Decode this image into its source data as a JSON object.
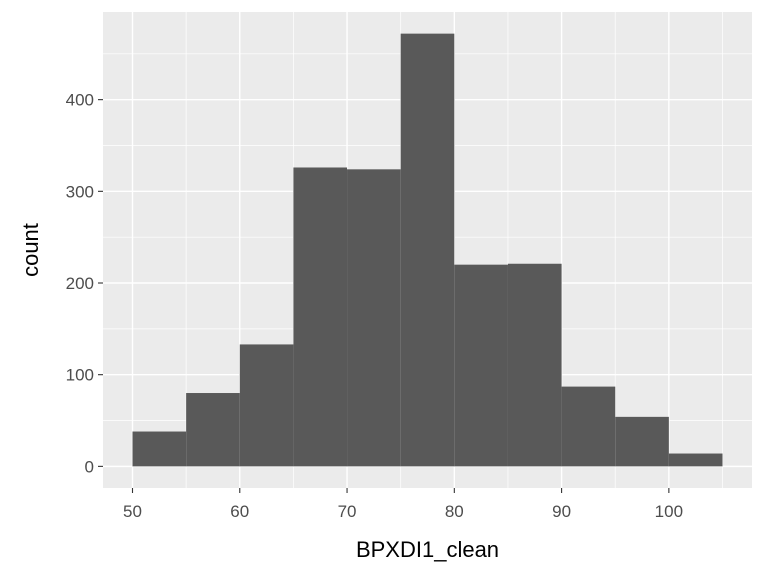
{
  "chart_data": {
    "type": "bar",
    "subtype": "histogram",
    "title": "",
    "xlabel": "BPXDI1_clean",
    "ylabel": "count",
    "bins": [
      {
        "x0": 50,
        "x1": 55,
        "count": 38
      },
      {
        "x0": 55,
        "x1": 60,
        "count": 80
      },
      {
        "x0": 60,
        "x1": 65,
        "count": 133
      },
      {
        "x0": 65,
        "x1": 70,
        "count": 326
      },
      {
        "x0": 70,
        "x1": 75,
        "count": 324
      },
      {
        "x0": 75,
        "x1": 80,
        "count": 472
      },
      {
        "x0": 80,
        "x1": 85,
        "count": 220
      },
      {
        "x0": 85,
        "x1": 90,
        "count": 221
      },
      {
        "x0": 90,
        "x1": 95,
        "count": 87
      },
      {
        "x0": 95,
        "x1": 100,
        "count": 54
      },
      {
        "x0": 100,
        "x1": 105,
        "count": 14
      }
    ],
    "xlim": [
      47.25,
      107.75
    ],
    "ylim": [
      -23.6,
      495.6
    ],
    "xticks": [
      50,
      60,
      70,
      80,
      90,
      100
    ],
    "xtick_labels": [
      "50",
      "60",
      "70",
      "80",
      "90",
      "100"
    ],
    "yticks": [
      0,
      100,
      200,
      300,
      400
    ],
    "ytick_labels": [
      "0",
      "100",
      "200",
      "300",
      "400"
    ],
    "grid": true,
    "legend": "none",
    "colors": {
      "panel_background": "#EBEBEB",
      "grid_major": "#FFFFFF",
      "bar_fill": "#595959",
      "tick_text": "#4D4D4D",
      "tick_mark": "#333333",
      "title_text": "#000000"
    }
  }
}
